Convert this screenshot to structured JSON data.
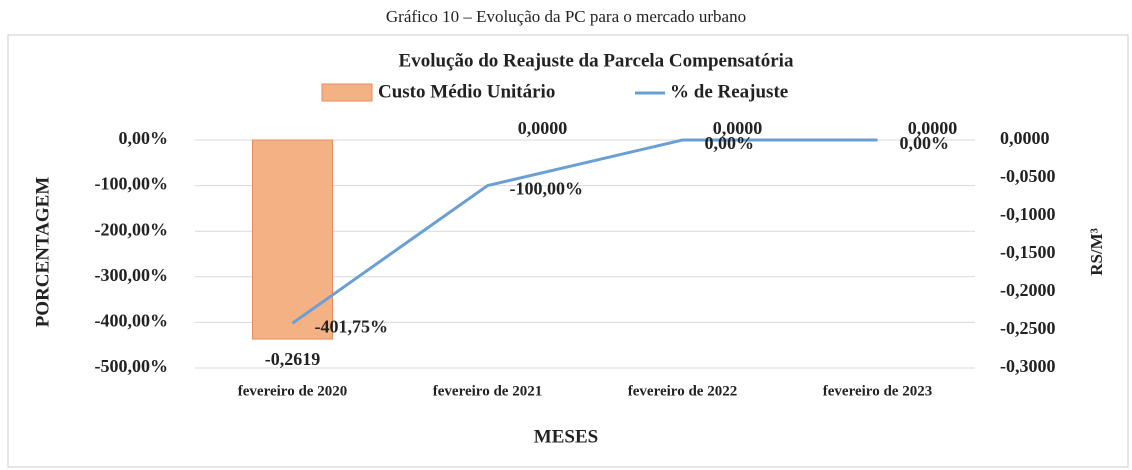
{
  "caption": "Gráfico 10 – Evolução da PC para o mercado urbano",
  "chart_data": {
    "type": "bar-line",
    "title": "Evolução do Reajuste da Parcela Compensatória",
    "categories": [
      "fevereiro de 2020",
      "fevereiro de 2021",
      "fevereiro de 2022",
      "fevereiro de 2023"
    ],
    "series": [
      {
        "name": "Custo Médio Unitário",
        "type": "bar",
        "axis": "y2",
        "color": "#f4b183",
        "values": [
          -0.2619,
          0,
          0,
          0
        ],
        "value_labels": [
          "-0,2619",
          "0,0000",
          "0,0000",
          "0,0000"
        ]
      },
      {
        "name": "% de Reajuste",
        "type": "line",
        "color": "#6a9fd4",
        "values": [
          -401.75,
          -100,
          0,
          0
        ],
        "value_labels": [
          "-401,75%",
          "-100,00%",
          "0,00%",
          "0,00%"
        ]
      }
    ],
    "xlabel": "MESES",
    "ylabel": "PORCENTAGEM",
    "y2label": "RS/M³",
    "ylim": [
      -500,
      0
    ],
    "yticks": [
      {
        "value": 0,
        "label": "0,00%"
      },
      {
        "value": -100,
        "label": "-100,00%"
      },
      {
        "value": -200,
        "label": "-200,00%"
      },
      {
        "value": -300,
        "label": "-300,00%"
      },
      {
        "value": -400,
        "label": "-400,00%"
      },
      {
        "value": -500,
        "label": "-500,00%"
      }
    ],
    "y2lim": [
      -0.3,
      0
    ],
    "y2ticks": [
      {
        "value": 0,
        "label": "0,0000"
      },
      {
        "value": -0.05,
        "label": "-0,0500"
      },
      {
        "value": -0.1,
        "label": "-0,1000"
      },
      {
        "value": -0.15,
        "label": "-0,1500"
      },
      {
        "value": -0.2,
        "label": "-0,2000"
      },
      {
        "value": -0.25,
        "label": "-0,2500"
      },
      {
        "value": -0.3,
        "label": "-0,3000"
      }
    ],
    "grid": true
  }
}
